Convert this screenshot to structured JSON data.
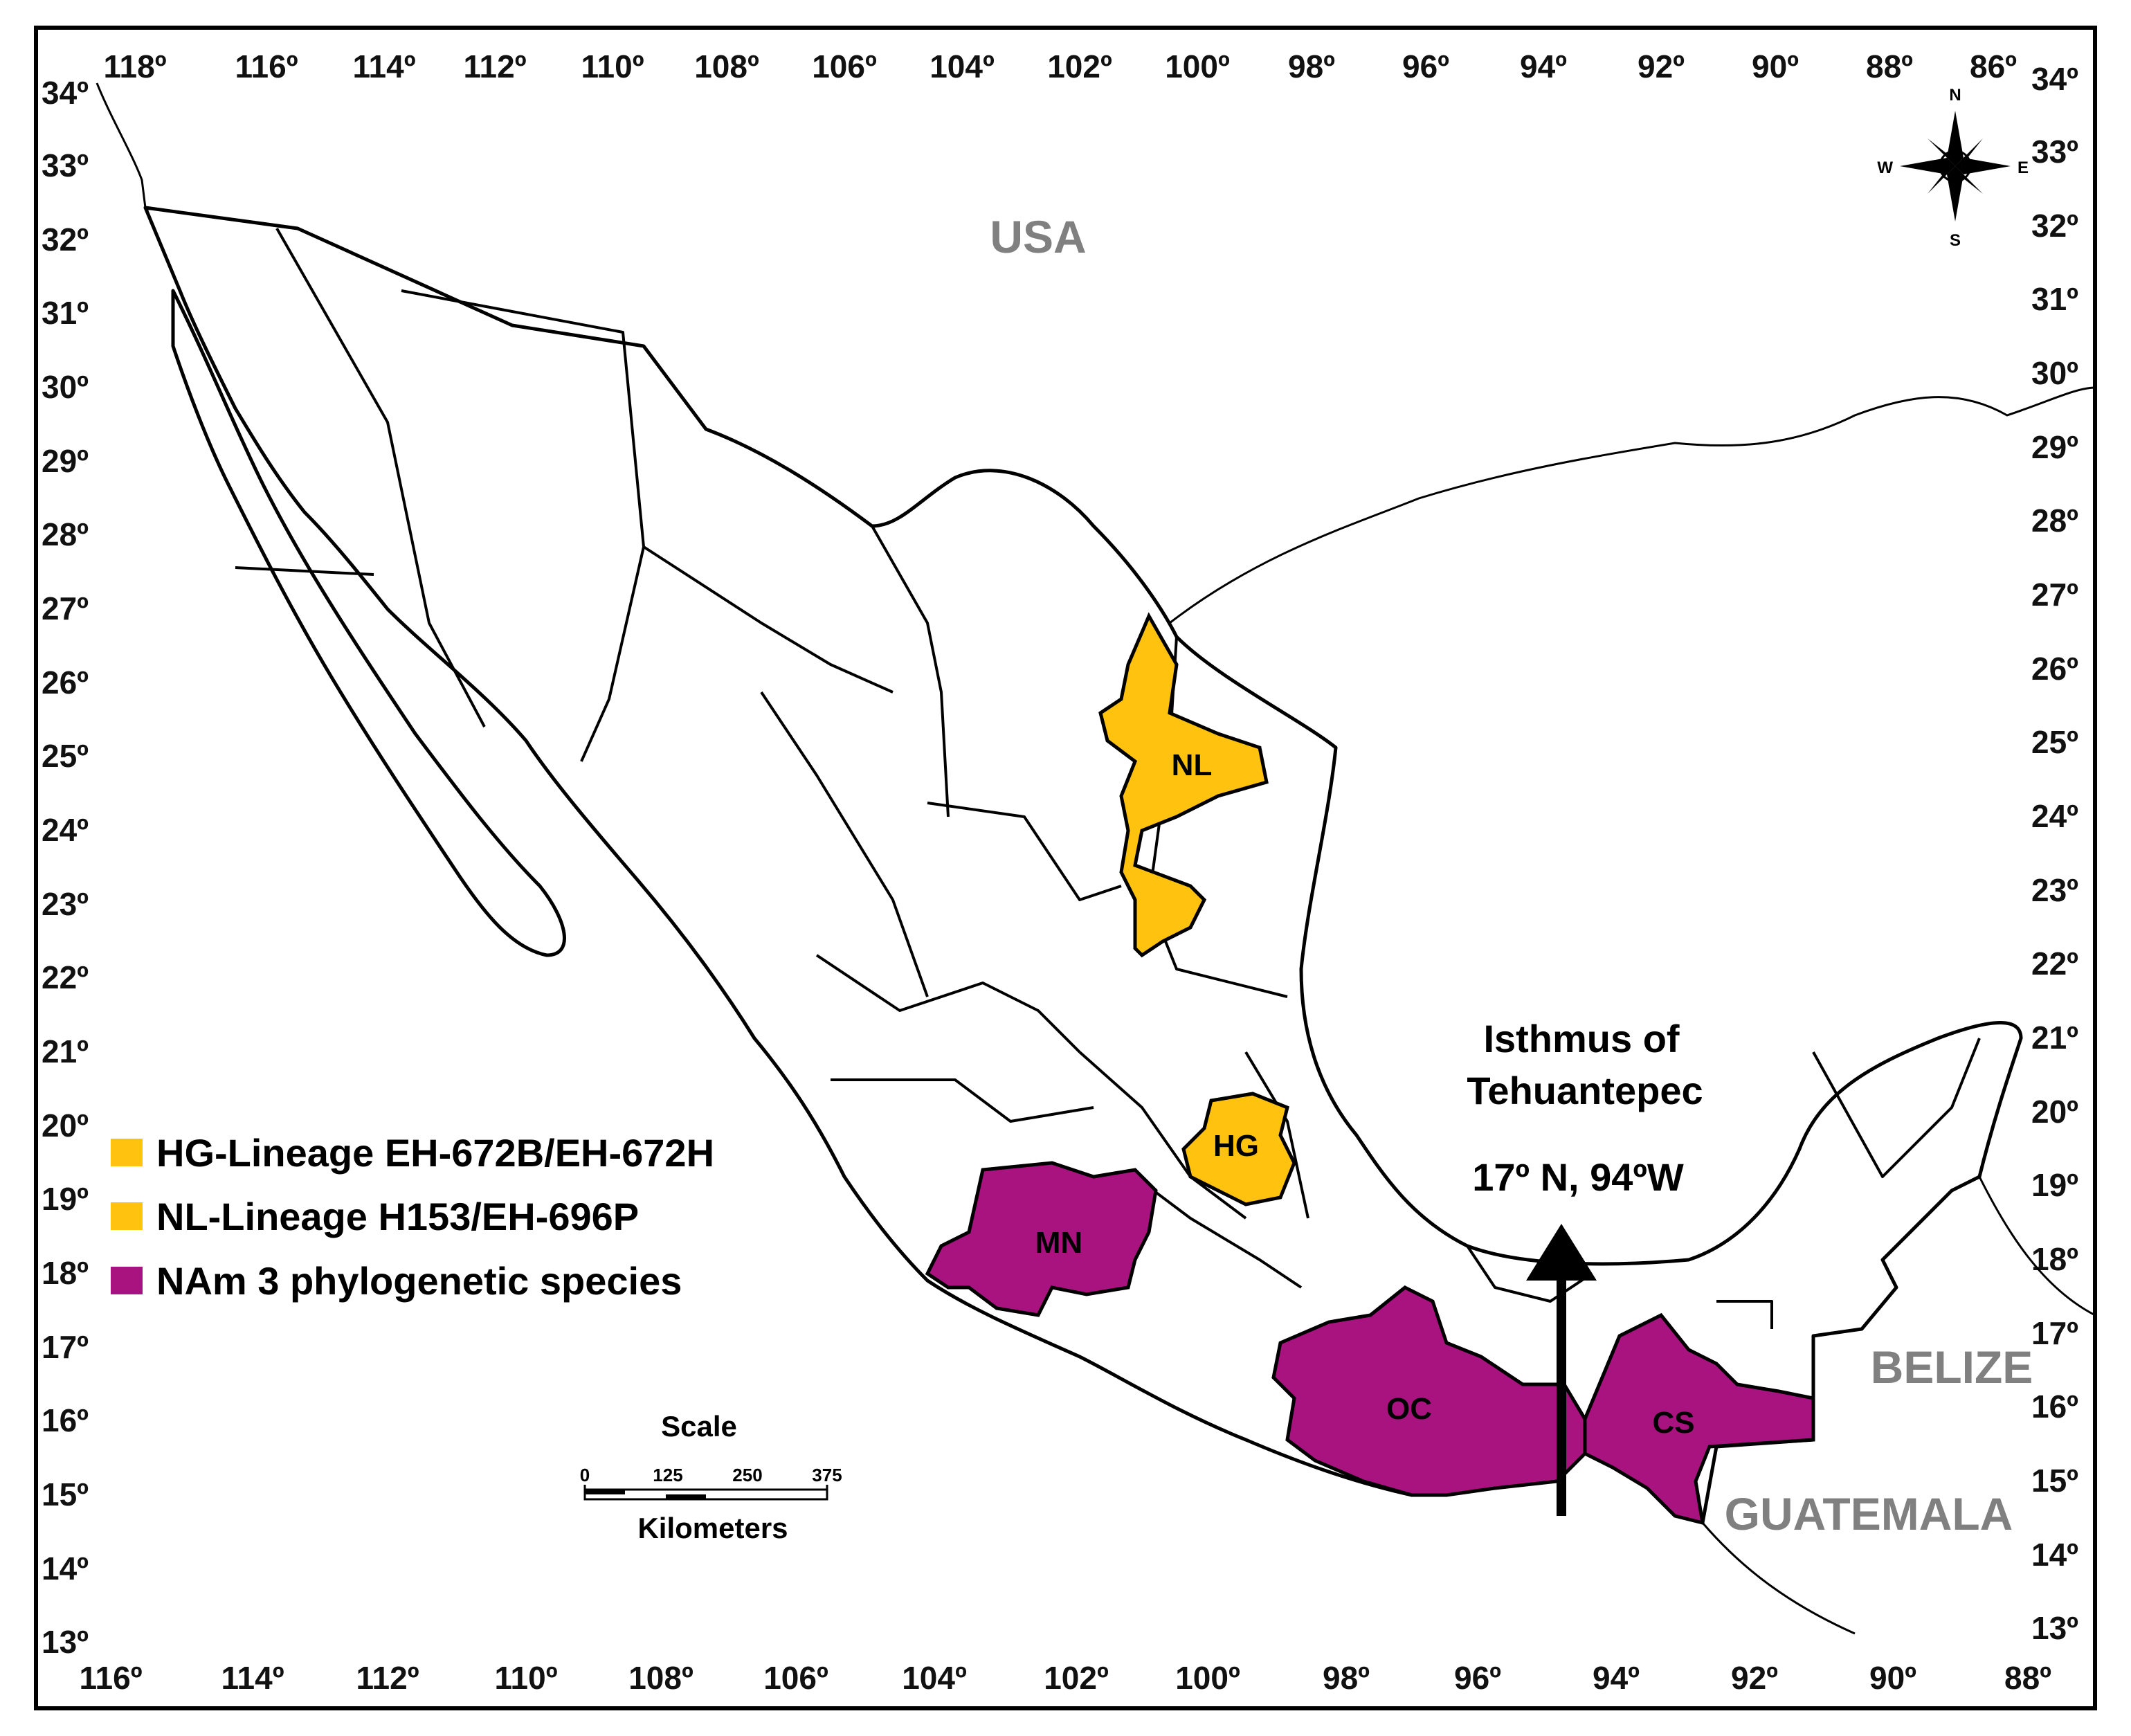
{
  "map": {
    "top_longitudes": [
      "118º",
      "116º",
      "114º",
      "112º",
      "110º",
      "108º",
      "106º",
      "104º",
      "102º",
      "100º",
      "98º",
      "96º",
      "94º",
      "92º",
      "90º",
      "88º",
      "86º"
    ],
    "bottom_longitudes": [
      "116º",
      "114º",
      "112º",
      "110º",
      "108º",
      "106º",
      "104º",
      "102º",
      "100º",
      "98º",
      "96º",
      "94º",
      "92º",
      "90º",
      "88º"
    ],
    "left_latitudes": [
      "34º",
      "33º",
      "32º",
      "31º",
      "30º",
      "29º",
      "28º",
      "27º",
      "26º",
      "25º",
      "24º",
      "23º",
      "22º",
      "21º",
      "20º",
      "19º",
      "18º",
      "17º",
      "16º",
      "15º",
      "14º",
      "13º"
    ],
    "right_latitudes": [
      "34º",
      "33º",
      "32º",
      "31º",
      "30º",
      "29º",
      "28º",
      "27º",
      "26º",
      "25º",
      "24º",
      "23º",
      "22º",
      "21º",
      "20º",
      "19º",
      "18º",
      "17º",
      "16º",
      "15º",
      "14º",
      "13º"
    ],
    "countries": {
      "usa": "USA",
      "belize": "BELIZE",
      "guatemala": "GUATEMALA"
    },
    "highlighted_states": [
      {
        "code": "NL",
        "group": "NL-Lineage H153/EH-696P"
      },
      {
        "code": "HG",
        "group": "HG-Lineage EH-672B/EH-672H"
      },
      {
        "code": "MN",
        "group": "NAm 3 phylogenetic species"
      },
      {
        "code": "OC",
        "group": "NAm 3 phylogenetic species"
      },
      {
        "code": "CS",
        "group": "NAm 3 phylogenetic species"
      }
    ],
    "annotation": {
      "line1": "Isthmus of",
      "line2": "Tehuantepec",
      "coords": "17º N, 94ºW"
    },
    "legend": [
      {
        "label": "HG-Lineage EH-672B/EH-672H",
        "color": "#FFC20E"
      },
      {
        "label": "NL-Lineage H153/EH-696P",
        "color": "#FFC20E"
      },
      {
        "label": "NAm 3 phylogenetic species",
        "color": "#A8137F"
      }
    ],
    "scale": {
      "title": "Scale",
      "ticks": [
        "0",
        "125",
        "250",
        "375"
      ],
      "unit": "Kilometers"
    },
    "compass": {
      "n": "N",
      "s": "S",
      "e": "E",
      "w": "W"
    },
    "colors": {
      "yellow": "#FFC20E",
      "magenta": "#A8137F",
      "country_label": "#808080"
    }
  }
}
